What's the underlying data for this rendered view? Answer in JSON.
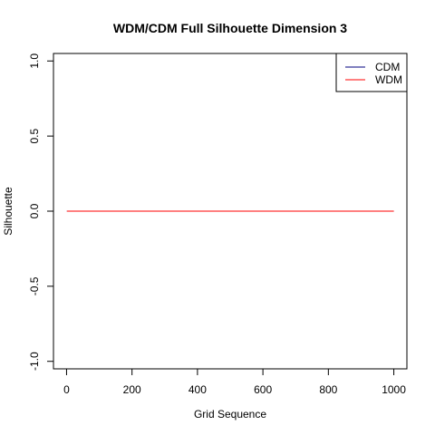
{
  "chart_data": {
    "type": "line",
    "title": "WDM/CDM Full Silhouette Dimension 3",
    "xlabel": "Grid Sequence",
    "ylabel": "Silhouette",
    "xlim": [
      -40,
      1040
    ],
    "ylim": [
      -1.05,
      1.05
    ],
    "xticks": [
      0,
      200,
      400,
      600,
      800,
      1000
    ],
    "xtick_labels": [
      "0",
      "200",
      "400",
      "600",
      "800",
      "1000"
    ],
    "yticks": [
      -1.0,
      -0.5,
      0.0,
      0.5,
      1.0
    ],
    "ytick_labels": [
      "-1.0",
      "-0.5",
      "0.0",
      "0.5",
      "1.0"
    ],
    "grid": false,
    "legend_position": "top-right",
    "series": [
      {
        "name": "CDM",
        "color": "#00007f",
        "x": [
          1,
          1000
        ],
        "y": [
          0,
          0
        ]
      },
      {
        "name": "WDM",
        "color": "#ff0000",
        "x": [
          1,
          1000
        ],
        "y": [
          0,
          0
        ]
      }
    ]
  }
}
